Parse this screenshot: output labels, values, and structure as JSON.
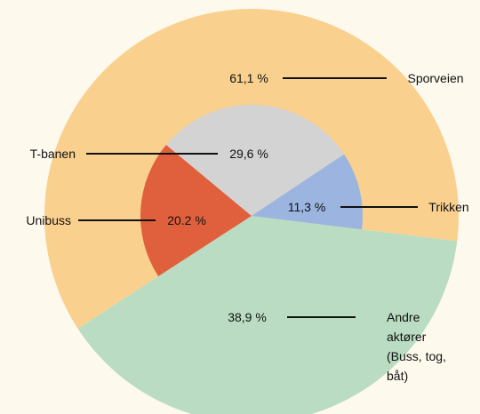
{
  "chart_data": {
    "type": "nested_pie",
    "outer": {
      "categories": [
        "Andre aktører\n(Buss, tog, båt)",
        "Sporveien"
      ],
      "values": [
        38.9,
        61.1
      ],
      "value_labels": [
        "38,9 %",
        "61,1 %"
      ],
      "colors": [
        "#badcc3",
        "#f9d08e"
      ]
    },
    "inner": {
      "categories": [
        "Unibuss",
        "T-banen",
        "Trikken"
      ],
      "values": [
        20.2,
        29.6,
        11.3
      ],
      "value_labels": [
        "20.2 %",
        "29,6 %",
        "11,3 %"
      ],
      "colors": [
        "#e0603e",
        "#d3d3d3",
        "#9cb4e0"
      ]
    }
  }
}
